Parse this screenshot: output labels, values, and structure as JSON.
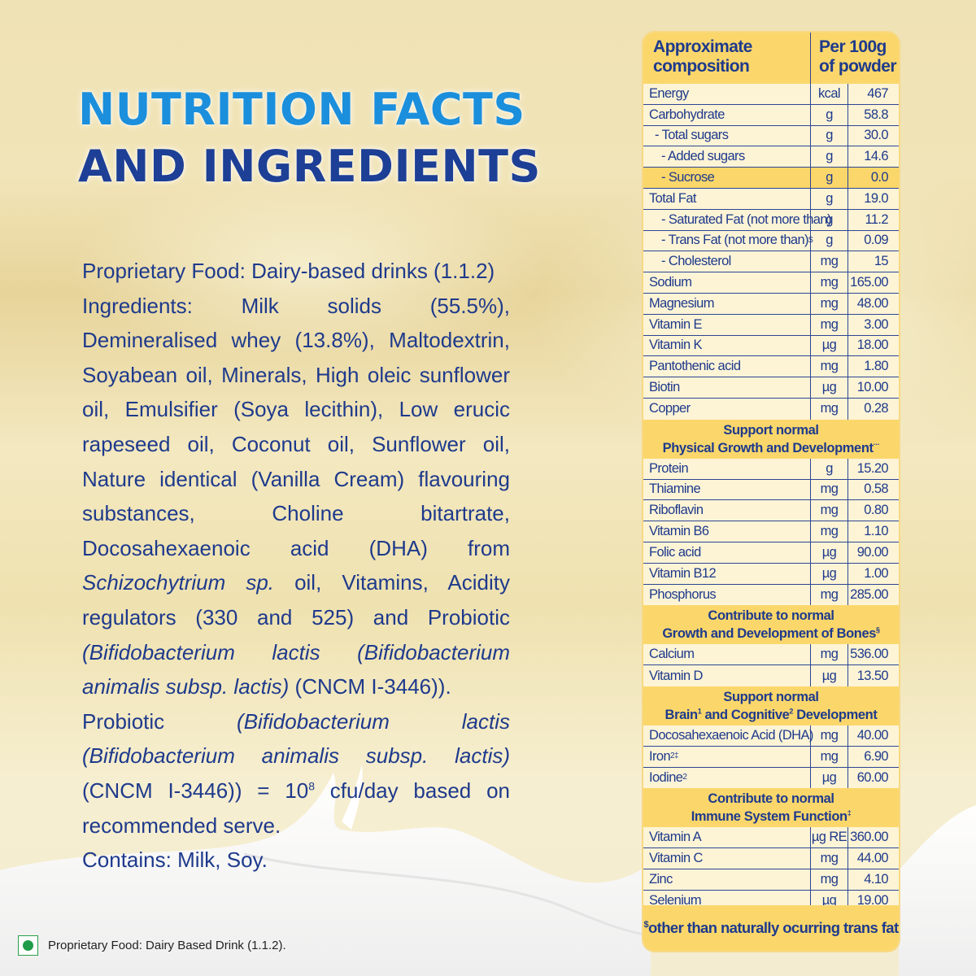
{
  "title": {
    "line1": "NUTRITION FACTS",
    "line2": "AND INGREDIENTS",
    "line1_color": "#1b8fdc",
    "line2_color": "#1d3f95"
  },
  "ingredients": {
    "category": "Proprietary Food: Dairy-based drinks (1.1.2)",
    "list_a": "Ingredients: Milk solids (55.5%), Demineralised whey (13.8%), Maltodextrin, Soyabean oil, Minerals, High oleic sunflower oil, Emulsifier (Soya lecithin), Low erucic rapeseed oil, Coconut oil, Sunflower oil, Nature identical (Vanilla Cream) flavouring substances, Choline bitartrate, Docosahexaenoic acid (DHA) from ",
    "list_a_italic": "Schizochytrium sp.",
    "list_b": " oil, Vitamins, Acidity regulators (330 and 525) and Probiotic ",
    "list_b_italic": "(Bifidobacterium lactis (Bifidobacterium animalis subsp. lactis)",
    "list_c": " (CNCM I-3446)).",
    "probiotic_prefix": "Probiotic ",
    "probiotic_italic": "(Bifidobacterium lactis (Bifidobacterium animalis subsp. lactis)",
    "probiotic_mid": " (CNCM I-3446)) = 10",
    "probiotic_exp": "8",
    "probiotic_suffix": " cfu/day based on recommended serve.",
    "contains": "Contains: Milk, Soy."
  },
  "nutrition_table": {
    "header": {
      "col1": "Approximate composition",
      "col2": "Per 100g of powder"
    },
    "rows_main": [
      {
        "name": "Energy",
        "unit": "kcal",
        "value": "467",
        "indent": 0
      },
      {
        "name": "Carbohydrate",
        "unit": "g",
        "value": "58.8",
        "indent": 0
      },
      {
        "name": "- Total sugars",
        "unit": "g",
        "value": "30.0",
        "indent": 1
      },
      {
        "name": "- Added sugars",
        "unit": "g",
        "value": "14.6",
        "indent": 2
      },
      {
        "name": "- Sucrose",
        "unit": "g",
        "value": "0.0",
        "indent": 2,
        "highlight": true
      },
      {
        "name": "Total Fat",
        "unit": "g",
        "value": "19.0",
        "indent": 0
      },
      {
        "name": "- Saturated Fat (not more than)",
        "unit": "g",
        "value": "11.2",
        "indent": 2
      },
      {
        "name": "- Trans Fat (not more than)",
        "sup": "$",
        "unit": "g",
        "value": "0.09",
        "indent": 2
      },
      {
        "name": "- Cholesterol",
        "unit": "mg",
        "value": "15",
        "indent": 2
      },
      {
        "name": "Sodium",
        "unit": "mg",
        "value": "165.00",
        "indent": 0
      },
      {
        "name": "Magnesium",
        "unit": "mg",
        "value": "48.00",
        "indent": 0
      },
      {
        "name": "Vitamin E",
        "unit": "mg",
        "value": "3.00",
        "indent": 0
      },
      {
        "name": "Vitamin K",
        "unit": "µg",
        "value": "18.00",
        "indent": 0
      },
      {
        "name": "Pantothenic acid",
        "unit": "mg",
        "value": "1.80",
        "indent": 0
      },
      {
        "name": "Biotin",
        "unit": "µg",
        "value": "10.00",
        "indent": 0
      },
      {
        "name": "Copper",
        "unit": "mg",
        "value": "0.28",
        "indent": 0
      }
    ],
    "sections": [
      {
        "line1": "Support normal",
        "line2": "Physical Growth and Development",
        "sup": "···",
        "rows": [
          {
            "name": "Protein",
            "unit": "g",
            "value": "15.20"
          },
          {
            "name": "Thiamine",
            "unit": "mg",
            "value": "0.58"
          },
          {
            "name": "Riboflavin",
            "unit": "mg",
            "value": "0.80"
          },
          {
            "name": "Vitamin B6",
            "unit": "mg",
            "value": "1.10"
          },
          {
            "name": "Folic acid",
            "unit": "µg",
            "value": "90.00"
          },
          {
            "name": "Vitamin B12",
            "unit": "µg",
            "value": "1.00"
          },
          {
            "name": "Phosphorus",
            "unit": "mg",
            "value": "285.00"
          }
        ]
      },
      {
        "line1": "Contribute to normal",
        "line2": "Growth and Development of Bones",
        "sup": "§",
        "rows": [
          {
            "name": "Calcium",
            "unit": "mg",
            "value": "536.00"
          },
          {
            "name": "Vitamin D",
            "unit": "µg",
            "value": "13.50"
          }
        ]
      },
      {
        "line1": "Support normal",
        "line2_a": "Brain",
        "line2_sup1": "1",
        "line2_b": " and Cognitive",
        "line2_sup2": "2",
        "line2_c": " Development",
        "rows": [
          {
            "name": "Docosahexaenoic Acid  (DHA)",
            "unit": "mg",
            "value": "40.00"
          },
          {
            "name": "Iron",
            "sup": "2‡",
            "unit": "mg",
            "value": "6.90"
          },
          {
            "name": "Iodine",
            "sup": "2",
            "unit": "µg",
            "value": "60.00"
          }
        ]
      },
      {
        "line1": "Contribute to normal",
        "line2": "Immune System Function",
        "sup": "‡",
        "rows": [
          {
            "name": "Vitamin A",
            "unit": "µg RE",
            "value": "360.00"
          },
          {
            "name": "Vitamin C",
            "unit": "mg",
            "value": "44.00"
          },
          {
            "name": "Zinc",
            "unit": "mg",
            "value": "4.10"
          },
          {
            "name": "Selenium",
            "unit": "µg",
            "value": "19.00"
          }
        ]
      }
    ],
    "footnote_symbol": "$",
    "footnote": "other than naturally ocurring trans fat",
    "colors": {
      "header_bg": "#fbd76b",
      "body_bg": "#fdf4d6",
      "text": "#1e3a8c"
    }
  },
  "veg_note": {
    "icon": "veg-mark-icon",
    "text": "Proprietary Food: Dairy Based Drink (1.1.2).",
    "color": "#1f9c49"
  }
}
